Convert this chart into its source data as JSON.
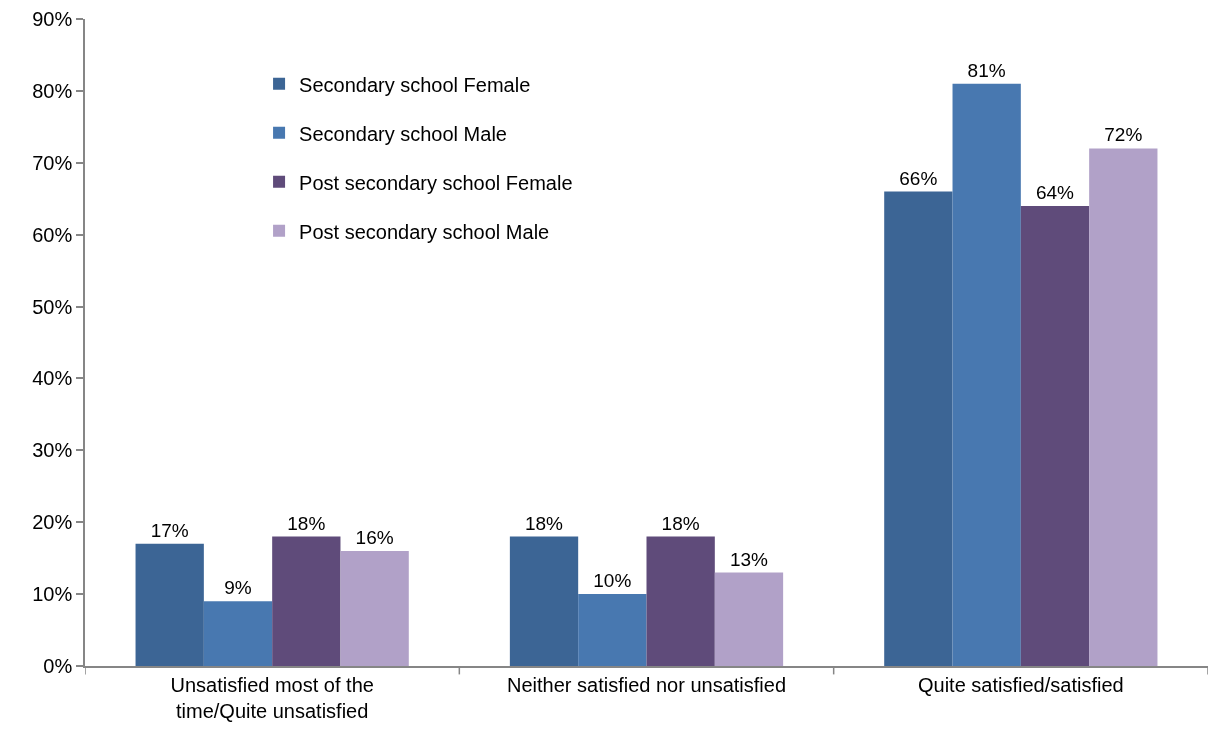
{
  "chart_data": {
    "type": "bar",
    "categories": [
      "Unsatisfied most of the time/Quite unsatisfied",
      "Neither satisfied nor unsatisfied",
      "Quite satisfied/satisfied"
    ],
    "series": [
      {
        "name": "Secondary school Female",
        "color": "#3c6595",
        "values": [
          17,
          18,
          66
        ],
        "value_labels": [
          "17%",
          "18%",
          "66%"
        ]
      },
      {
        "name": "Secondary school Male",
        "color": "#4878b0",
        "values": [
          9,
          10,
          81
        ],
        "value_labels": [
          "9%",
          "10%",
          "81%"
        ]
      },
      {
        "name": "Post secondary school Female",
        "color": "#5f4b7a",
        "values": [
          18,
          18,
          64
        ],
        "value_labels": [
          "18%",
          "18%",
          "64%"
        ]
      },
      {
        "name": "Post secondary school Male",
        "color": "#b1a1c8",
        "values": [
          16,
          13,
          72
        ],
        "value_labels": [
          "16%",
          "13%",
          "72%"
        ]
      }
    ],
    "ylim": [
      0,
      90
    ],
    "yticks": [
      {
        "value": 0,
        "label": "0%"
      },
      {
        "value": 10,
        "label": "10%"
      },
      {
        "value": 20,
        "label": "20%"
      },
      {
        "value": 30,
        "label": "30%"
      },
      {
        "value": 40,
        "label": "40%"
      },
      {
        "value": 50,
        "label": "50%"
      },
      {
        "value": 60,
        "label": "60%"
      },
      {
        "value": 70,
        "label": "70%"
      },
      {
        "value": 80,
        "label": "80%"
      },
      {
        "value": 90,
        "label": "90%"
      }
    ],
    "legend": "top left"
  }
}
